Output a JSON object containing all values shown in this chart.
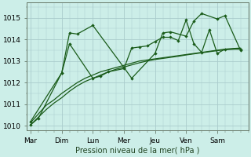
{
  "xlabel": "Pression niveau de la mer( hPa )",
  "background_color": "#cceee8",
  "grid_color": "#aacccc",
  "line_color": "#1a5c1a",
  "x_labels": [
    "Mar",
    "Dim",
    "Lun",
    "Mer",
    "Jeu",
    "Ven",
    "Sam"
  ],
  "x_ticks": [
    0,
    24,
    48,
    72,
    96,
    120,
    144
  ],
  "ylim": [
    1009.8,
    1015.7
  ],
  "xlim": [
    -3,
    168
  ],
  "yticks": [
    1010,
    1011,
    1012,
    1013,
    1014,
    1015
  ],
  "series1_x": [
    0,
    6,
    12,
    18,
    24,
    30,
    36,
    42,
    48,
    54,
    60,
    66,
    72,
    78,
    84,
    90,
    96,
    102,
    108,
    114,
    120,
    126,
    132,
    138,
    144,
    150,
    156,
    162
  ],
  "series1_y": [
    1010.15,
    1010.55,
    1010.95,
    1011.2,
    1011.5,
    1011.75,
    1012.0,
    1012.2,
    1012.35,
    1012.5,
    1012.6,
    1012.7,
    1012.8,
    1012.9,
    1013.0,
    1013.05,
    1013.1,
    1013.15,
    1013.2,
    1013.25,
    1013.3,
    1013.35,
    1013.4,
    1013.45,
    1013.5,
    1013.55,
    1013.58,
    1013.6
  ],
  "series2_x": [
    0,
    6,
    12,
    18,
    24,
    30,
    36,
    42,
    48,
    54,
    60,
    66,
    72,
    78,
    84,
    90,
    96,
    102,
    108,
    114,
    120,
    126,
    132,
    138,
    144,
    150,
    156,
    162
  ],
  "series2_y": [
    1010.05,
    1010.4,
    1010.75,
    1011.05,
    1011.3,
    1011.6,
    1011.85,
    1012.05,
    1012.2,
    1012.35,
    1012.5,
    1012.62,
    1012.72,
    1012.82,
    1012.92,
    1013.0,
    1013.07,
    1013.12,
    1013.17,
    1013.22,
    1013.28,
    1013.33,
    1013.38,
    1013.43,
    1013.48,
    1013.52,
    1013.55,
    1013.58
  ],
  "series3_x": [
    0,
    24,
    30,
    36,
    48,
    72,
    78,
    96,
    102,
    108,
    120,
    126,
    132,
    144,
    150,
    162
  ],
  "series3_y": [
    1010.2,
    1012.45,
    1014.3,
    1014.25,
    1014.65,
    1012.7,
    1012.2,
    1013.35,
    1014.3,
    1014.35,
    1014.15,
    1014.85,
    1015.2,
    1014.95,
    1015.1,
    1013.5
  ],
  "series4_x": [
    0,
    6,
    24,
    30,
    48,
    54,
    60,
    72,
    78,
    84,
    90,
    96,
    102,
    108,
    114,
    120,
    126,
    132,
    138,
    144,
    150,
    162
  ],
  "series4_y": [
    1010.05,
    1010.35,
    1012.45,
    1013.8,
    1012.2,
    1012.3,
    1012.5,
    1012.65,
    1013.6,
    1013.65,
    1013.7,
    1013.9,
    1014.1,
    1014.1,
    1013.95,
    1014.9,
    1013.8,
    1013.4,
    1014.45,
    1013.35,
    1013.55,
    1013.55
  ]
}
